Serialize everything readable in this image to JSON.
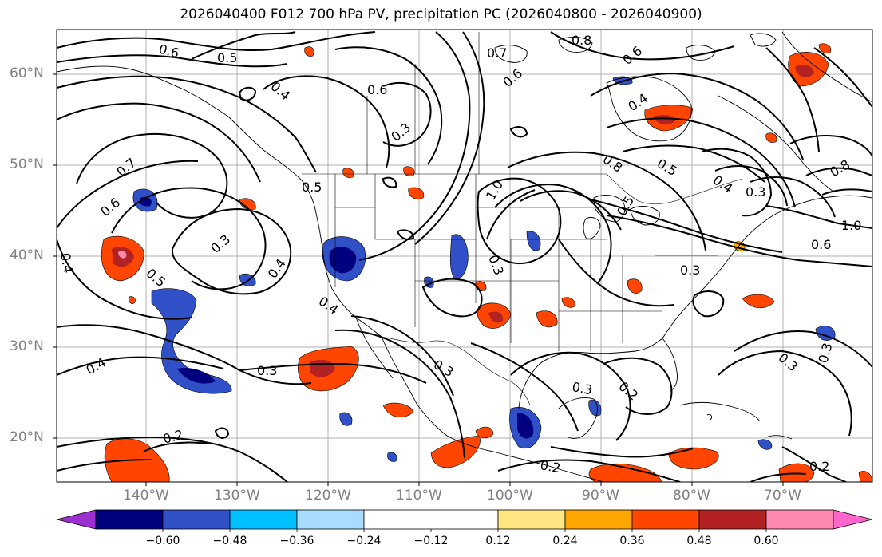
{
  "title": "2026040400 F012 700 hPa PV, precipitation PC (2026040800 - 2026040900)",
  "lat_labels": [
    "60°N",
    "50°N",
    "40°N",
    "30°N",
    "20°N"
  ],
  "lon_labels": [
    "140°W",
    "130°W",
    "120°W",
    "110°W",
    "100°W",
    "90°W",
    "80°W",
    "70°W"
  ],
  "contour_labels": [
    "0.6",
    "0.5",
    "0.6",
    "0.4",
    "0.3",
    "0.7",
    "0.8",
    "0.6",
    "0.6",
    "0.4",
    "0.7",
    "0.6",
    "0.3",
    "0.5",
    "0.4",
    "0.5",
    "1.0",
    "0.8",
    "0.5",
    "0.3",
    "0.4",
    "0.4",
    "0.3",
    "0.4",
    "0.5",
    "0.3",
    "0.3",
    "0.3",
    "0.2",
    "0.4",
    "0.3",
    "0.3",
    "0.2",
    "0.2",
    "1.0",
    "0.6",
    "0.8",
    "0.3",
    "0.2"
  ],
  "colorbar": {
    "colors": [
      "#9b30d0",
      "#00007f",
      "#3050c8",
      "#00bfff",
      "#a9dcff",
      "#ffffff",
      "#ffe680",
      "#ffa500",
      "#ff4500",
      "#b22222",
      "#ff88b0",
      "#ff66cc"
    ],
    "labels": [
      "−0.60",
      "−0.48",
      "−0.36",
      "−0.24",
      "−0.12",
      "0.12",
      "0.24",
      "0.36",
      "0.48",
      "0.60"
    ]
  },
  "legend": {
    "negative_colors": [
      "#00007f",
      "#3050c8",
      "#00bfff",
      "#a9dcff"
    ],
    "positive_colors": [
      "#ffe680",
      "#ffa500",
      "#ff4500",
      "#b22222",
      "#ff88b0"
    ]
  }
}
